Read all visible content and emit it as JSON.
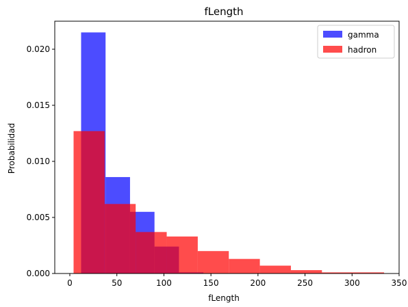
{
  "chart_data": {
    "type": "bar",
    "title": "fLength",
    "xlabel": "fLength",
    "ylabel": "Probabilidad",
    "xlim": [
      -16,
      350
    ],
    "ylim": [
      0,
      0.0225
    ],
    "xticks": [
      0,
      50,
      100,
      150,
      200,
      250,
      300,
      350
    ],
    "yticks": [
      0.0,
      0.005,
      0.01,
      0.015,
      0.02
    ],
    "ytick_labels": [
      "0.000",
      "0.005",
      "0.010",
      "0.015",
      "0.020"
    ],
    "legend_position": "top-right",
    "grid": false,
    "series": [
      {
        "name": "gamma",
        "color": "#0000ff",
        "opacity": 0.7,
        "bin_edges": [
          12,
          38,
          64,
          90,
          116,
          142,
          168,
          194,
          220,
          246,
          272,
          298,
          324
        ],
        "values": [
          0.0215,
          0.0086,
          0.0055,
          0.0024,
          0.0001,
          0.0,
          0.0,
          0.0,
          0.0,
          0.0,
          0.0,
          0.0
        ]
      },
      {
        "name": "hadron",
        "color": "#ff0000",
        "opacity": 0.7,
        "bin_edges": [
          4,
          37,
          70,
          103,
          136,
          169,
          202,
          235,
          268,
          301,
          334
        ],
        "values": [
          0.0127,
          0.0062,
          0.0037,
          0.0033,
          0.002,
          0.0013,
          0.0007,
          0.0003,
          0.0001,
          0.0001
        ]
      }
    ]
  }
}
